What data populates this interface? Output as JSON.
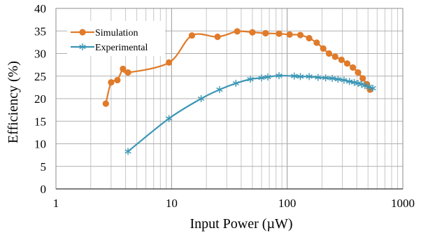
{
  "chart_data": {
    "type": "line",
    "xscale": "log",
    "xlim": [
      1,
      1000
    ],
    "ylim": [
      0,
      40
    ],
    "xlabel": "Input Power (µW)",
    "ylabel": "Efficiency (%)",
    "xticks": [
      1,
      10,
      100,
      1000
    ],
    "xtick_labels": [
      "1",
      "10",
      "100",
      "1000"
    ],
    "yticks": [
      0,
      5,
      10,
      15,
      20,
      25,
      30,
      35,
      40
    ],
    "ytick_labels": [
      "0",
      "5",
      "10",
      "15",
      "20",
      "25",
      "30",
      "35",
      "40"
    ],
    "grid": true,
    "legend_position": "top-left",
    "series": [
      {
        "name": "Simulation",
        "color": "#E07B2A",
        "marker": "circle",
        "points": [
          [
            2.7,
            18.9
          ],
          [
            3.0,
            23.6
          ],
          [
            3.4,
            24.1
          ],
          [
            3.8,
            26.6
          ],
          [
            4.2,
            25.8
          ],
          [
            9.5,
            28.0
          ],
          [
            15,
            34.0
          ],
          [
            25,
            33.7
          ],
          [
            37,
            34.9
          ],
          [
            50,
            34.7
          ],
          [
            65,
            34.5
          ],
          [
            85,
            34.4
          ],
          [
            105,
            34.2
          ],
          [
            130,
            34.1
          ],
          [
            155,
            33.4
          ],
          [
            180,
            32.4
          ],
          [
            205,
            31.1
          ],
          [
            230,
            30.0
          ],
          [
            260,
            29.3
          ],
          [
            295,
            28.6
          ],
          [
            330,
            27.8
          ],
          [
            370,
            26.9
          ],
          [
            410,
            25.8
          ],
          [
            450,
            24.5
          ],
          [
            490,
            23.2
          ],
          [
            520,
            22.0
          ]
        ]
      },
      {
        "name": "Experimental",
        "color": "#3B96B5",
        "marker": "asterisk",
        "points": [
          [
            4.2,
            8.3
          ],
          [
            9.5,
            15.6
          ],
          [
            18,
            20.0
          ],
          [
            26,
            22.0
          ],
          [
            36,
            23.4
          ],
          [
            48,
            24.3
          ],
          [
            60,
            24.6
          ],
          [
            68,
            24.8
          ],
          [
            85,
            25.1
          ],
          [
            115,
            25.0
          ],
          [
            130,
            24.9
          ],
          [
            155,
            24.9
          ],
          [
            185,
            24.7
          ],
          [
            215,
            24.6
          ],
          [
            245,
            24.5
          ],
          [
            275,
            24.3
          ],
          [
            310,
            24.1
          ],
          [
            345,
            23.8
          ],
          [
            380,
            23.6
          ],
          [
            410,
            23.4
          ],
          [
            440,
            23.2
          ],
          [
            470,
            22.9
          ],
          [
            510,
            22.6
          ],
          [
            550,
            22.3
          ]
        ]
      }
    ]
  }
}
